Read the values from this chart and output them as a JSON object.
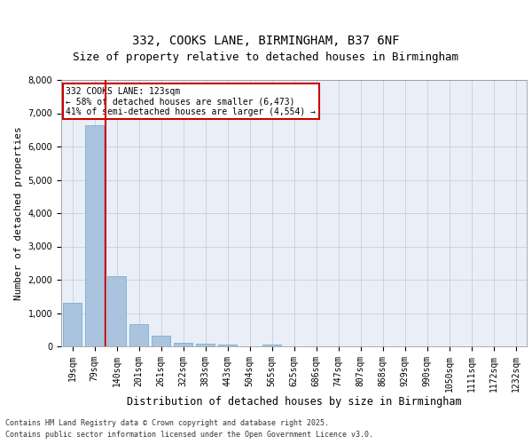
{
  "title1": "332, COOKS LANE, BIRMINGHAM, B37 6NF",
  "title2": "Size of property relative to detached houses in Birmingham",
  "xlabel": "Distribution of detached houses by size in Birmingham",
  "ylabel": "Number of detached properties",
  "categories": [
    "19sqm",
    "79sqm",
    "140sqm",
    "201sqm",
    "261sqm",
    "322sqm",
    "383sqm",
    "443sqm",
    "504sqm",
    "565sqm",
    "625sqm",
    "686sqm",
    "747sqm",
    "807sqm",
    "868sqm",
    "929sqm",
    "990sqm",
    "1050sqm",
    "1111sqm",
    "1172sqm",
    "1232sqm"
  ],
  "values": [
    1300,
    6650,
    2100,
    680,
    310,
    115,
    80,
    55,
    0,
    55,
    0,
    0,
    0,
    0,
    0,
    0,
    0,
    0,
    0,
    0,
    0
  ],
  "bar_color": "#aac4e0",
  "bar_edge_color": "#7aaed0",
  "vline_color": "#cc0000",
  "vline_x_index": 1,
  "annotation_title": "332 COOKS LANE: 123sqm",
  "annotation_line2": "← 58% of detached houses are smaller (6,473)",
  "annotation_line3": "41% of semi-detached houses are larger (4,554) →",
  "annotation_box_color": "#cc0000",
  "annotation_bg": "#ffffff",
  "ylim": [
    0,
    8000
  ],
  "yticks": [
    0,
    1000,
    2000,
    3000,
    4000,
    5000,
    6000,
    7000,
    8000
  ],
  "footnote1": "Contains HM Land Registry data © Crown copyright and database right 2025.",
  "footnote2": "Contains public sector information licensed under the Open Government Licence v3.0.",
  "plot_bg_color": "#eaeff7",
  "title_fontsize": 10,
  "subtitle_fontsize": 9,
  "tick_fontsize": 7,
  "ylabel_fontsize": 8,
  "xlabel_fontsize": 8.5,
  "footnote_fontsize": 6
}
